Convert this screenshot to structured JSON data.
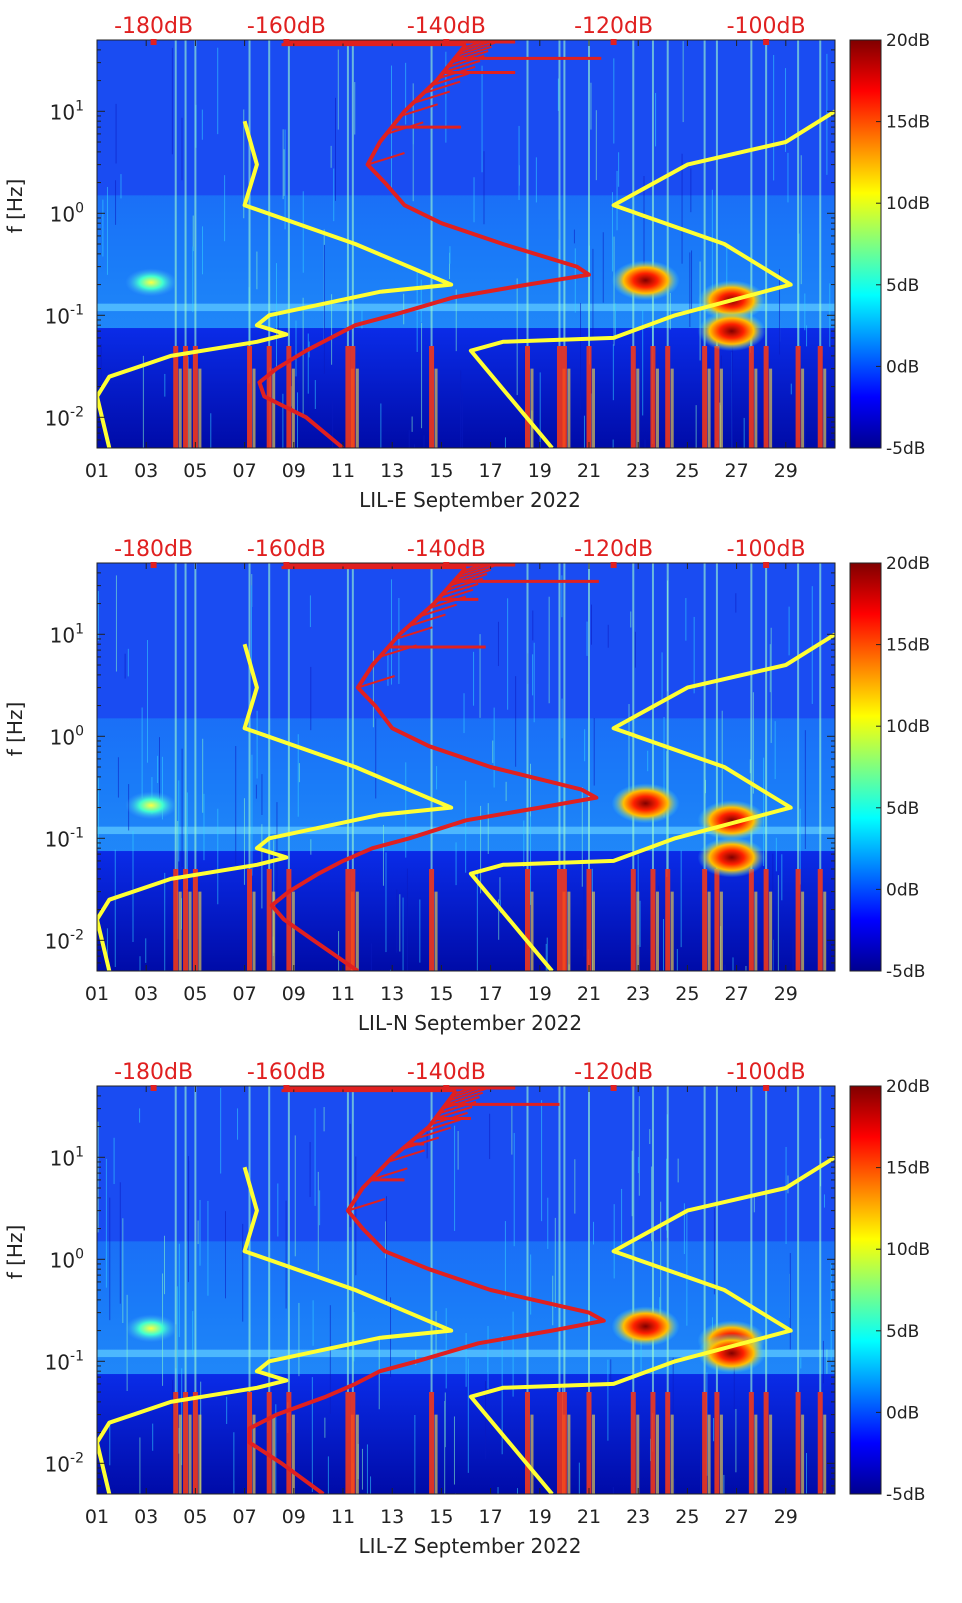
{
  "chart_data": [
    {
      "type": "heatmap",
      "station": "LIL-E",
      "xlabel": "LIL-E September 2022",
      "ylabel": "f [Hz]",
      "x_ticks": [
        "01",
        "03",
        "05",
        "07",
        "09",
        "11",
        "13",
        "15",
        "17",
        "19",
        "21",
        "23",
        "25",
        "27",
        "29"
      ],
      "x_tick_days": [
        1,
        3,
        5,
        7,
        9,
        11,
        13,
        15,
        17,
        19,
        21,
        23,
        25,
        27,
        29
      ],
      "xlim": [
        1,
        31
      ],
      "ylim": [
        0.005,
        50
      ],
      "y_scale": "log",
      "y_ticks": [
        0.01,
        0.1,
        1,
        10
      ],
      "y_tick_labels": [
        {
          "base": "10",
          "exp": "-2"
        },
        {
          "base": "10",
          "exp": "-1"
        },
        {
          "base": "10",
          "exp": "0"
        },
        {
          "base": "10",
          "exp": "1"
        }
      ],
      "top_axis_labels": [
        "-180dB",
        "-160dB",
        "-140dB",
        "-120dB",
        "-100dB"
      ],
      "top_axis_db": [
        -180,
        -160,
        -140,
        -120,
        -100
      ],
      "top_axis_day": [
        3.3,
        8.7,
        15.2,
        22.0,
        28.2
      ],
      "colorbar": {
        "labels": [
          "20dB",
          "15dB",
          "10dB",
          "5dB",
          "0dB",
          "-5dB"
        ],
        "values": [
          20,
          15,
          10,
          5,
          0,
          -5
        ],
        "range": [
          -5,
          20
        ]
      },
      "noise_models": {
        "low": {
          "color": "#ffff33",
          "points": [
            [
              0.005,
              1.5
            ],
            [
              0.016,
              1.0
            ],
            [
              0.025,
              1.5
            ],
            [
              0.04,
              4.0
            ],
            [
              0.055,
              7.5
            ],
            [
              0.065,
              8.7
            ],
            [
              0.08,
              7.5
            ],
            [
              0.1,
              8.0
            ],
            [
              0.17,
              12.5
            ],
            [
              0.2,
              15.4
            ],
            [
              0.5,
              11.5
            ],
            [
              1.2,
              7.0
            ],
            [
              3.0,
              7.5
            ],
            [
              8.0,
              7.0
            ]
          ]
        },
        "high": {
          "color": "#ffff33",
          "points": [
            [
              0.005,
              19.5
            ],
            [
              0.045,
              16.2
            ],
            [
              0.055,
              17.5
            ],
            [
              0.06,
              22.0
            ],
            [
              0.1,
              24.5
            ],
            [
              0.2,
              29.2
            ],
            [
              0.5,
              26.5
            ],
            [
              1.2,
              22.0
            ],
            [
              3.0,
              25.0
            ],
            [
              5.0,
              29.0
            ],
            [
              10.0,
              31.0
            ]
          ]
        }
      },
      "psd_curve": {
        "color": "#e02020",
        "points": [
          [
            0.005,
            11.0
          ],
          [
            0.01,
            9.5
          ],
          [
            0.016,
            7.8
          ],
          [
            0.022,
            7.6
          ],
          [
            0.03,
            8.3
          ],
          [
            0.045,
            9.5
          ],
          [
            0.06,
            10.5
          ],
          [
            0.08,
            11.5
          ],
          [
            0.1,
            13.0
          ],
          [
            0.15,
            15.5
          ],
          [
            0.2,
            18.5
          ],
          [
            0.25,
            21.0
          ],
          [
            0.3,
            20.5
          ],
          [
            0.5,
            17.5
          ],
          [
            0.8,
            15.0
          ],
          [
            1.2,
            13.5
          ],
          [
            2.0,
            12.7
          ],
          [
            3.0,
            12.0
          ],
          [
            5.0,
            12.5
          ],
          [
            10.0,
            13.5
          ],
          [
            20.0,
            14.8
          ],
          [
            45.0,
            16.0
          ]
        ]
      },
      "psd_spikes": [
        {
          "f": 7.0,
          "to_day": 15.8
        },
        {
          "f": 24.0,
          "to_day": 18.0
        },
        {
          "f": 33.0,
          "to_day": 21.5
        },
        {
          "f": 45.0,
          "to_day": 8.5
        }
      ],
      "hotspots": [
        {
          "day": 3.2,
          "f": 0.21,
          "level": "high"
        },
        {
          "day": 23.3,
          "f": 0.22,
          "level": "very-high"
        },
        {
          "day": 26.8,
          "f": 0.14,
          "level": "very-high"
        },
        {
          "day": 26.8,
          "f": 0.07,
          "level": "very-high"
        }
      ],
      "transients_days": [
        4.2,
        4.6,
        5.0,
        7.2,
        8.0,
        8.8,
        11.2,
        11.4,
        14.6,
        18.5,
        19.8,
        20.0,
        21.0,
        22.8,
        23.6,
        24.2,
        25.7,
        26.2,
        27.6,
        28.2,
        29.5,
        30.4
      ]
    },
    {
      "type": "heatmap",
      "station": "LIL-N",
      "xlabel": "LIL-N September 2022",
      "ylabel": "f [Hz]",
      "x_ticks": [
        "01",
        "03",
        "05",
        "07",
        "09",
        "11",
        "13",
        "15",
        "17",
        "19",
        "21",
        "23",
        "25",
        "27",
        "29"
      ],
      "x_tick_days": [
        1,
        3,
        5,
        7,
        9,
        11,
        13,
        15,
        17,
        19,
        21,
        23,
        25,
        27,
        29
      ],
      "xlim": [
        1,
        31
      ],
      "ylim": [
        0.005,
        50
      ],
      "y_scale": "log",
      "y_ticks": [
        0.01,
        0.1,
        1,
        10
      ],
      "y_tick_labels": [
        {
          "base": "10",
          "exp": "-2"
        },
        {
          "base": "10",
          "exp": "-1"
        },
        {
          "base": "10",
          "exp": "0"
        },
        {
          "base": "10",
          "exp": "1"
        }
      ],
      "top_axis_labels": [
        "-180dB",
        "-160dB",
        "-140dB",
        "-120dB",
        "-100dB"
      ],
      "top_axis_db": [
        -180,
        -160,
        -140,
        -120,
        -100
      ],
      "top_axis_day": [
        3.3,
        8.7,
        15.2,
        22.0,
        28.2
      ],
      "colorbar": {
        "labels": [
          "20dB",
          "15dB",
          "10dB",
          "5dB",
          "0dB",
          "-5dB"
        ],
        "values": [
          20,
          15,
          10,
          5,
          0,
          -5
        ],
        "range": [
          -5,
          20
        ]
      },
      "noise_models": {
        "low": {
          "color": "#ffff33",
          "points": [
            [
              0.005,
              1.5
            ],
            [
              0.016,
              1.0
            ],
            [
              0.025,
              1.5
            ],
            [
              0.04,
              4.0
            ],
            [
              0.055,
              7.5
            ],
            [
              0.065,
              8.7
            ],
            [
              0.08,
              7.5
            ],
            [
              0.1,
              8.0
            ],
            [
              0.17,
              12.5
            ],
            [
              0.2,
              15.4
            ],
            [
              0.5,
              11.5
            ],
            [
              1.2,
              7.0
            ],
            [
              3.0,
              7.5
            ],
            [
              8.0,
              7.0
            ]
          ]
        },
        "high": {
          "color": "#ffff33",
          "points": [
            [
              0.005,
              19.5
            ],
            [
              0.045,
              16.2
            ],
            [
              0.055,
              17.5
            ],
            [
              0.06,
              22.0
            ],
            [
              0.1,
              24.5
            ],
            [
              0.2,
              29.2
            ],
            [
              0.5,
              26.5
            ],
            [
              1.2,
              22.0
            ],
            [
              3.0,
              25.0
            ],
            [
              5.0,
              29.0
            ],
            [
              10.0,
              31.0
            ]
          ]
        }
      },
      "psd_curve": {
        "color": "#e02020",
        "points": [
          [
            0.005,
            11.6
          ],
          [
            0.01,
            9.8
          ],
          [
            0.016,
            8.6
          ],
          [
            0.022,
            8.1
          ],
          [
            0.03,
            8.8
          ],
          [
            0.045,
            10.0
          ],
          [
            0.06,
            11.0
          ],
          [
            0.08,
            12.2
          ],
          [
            0.1,
            13.7
          ],
          [
            0.15,
            16.0
          ],
          [
            0.2,
            19.0
          ],
          [
            0.25,
            21.3
          ],
          [
            0.3,
            20.7
          ],
          [
            0.5,
            17.0
          ],
          [
            0.8,
            14.5
          ],
          [
            1.2,
            13.0
          ],
          [
            2.0,
            12.3
          ],
          [
            3.0,
            11.6
          ],
          [
            5.0,
            12.2
          ],
          [
            10.0,
            13.3
          ],
          [
            20.0,
            14.7
          ],
          [
            45.0,
            16.0
          ]
        ]
      },
      "psd_spikes": [
        {
          "f": 7.5,
          "to_day": 16.8
        },
        {
          "f": 22.0,
          "to_day": 16.5
        },
        {
          "f": 33.0,
          "to_day": 21.4
        },
        {
          "f": 45.0,
          "to_day": 8.5
        }
      ],
      "hotspots": [
        {
          "day": 3.2,
          "f": 0.21,
          "level": "high"
        },
        {
          "day": 23.3,
          "f": 0.22,
          "level": "very-high"
        },
        {
          "day": 26.8,
          "f": 0.15,
          "level": "very-high"
        },
        {
          "day": 26.8,
          "f": 0.065,
          "level": "very-high"
        }
      ],
      "transients_days": [
        4.2,
        4.6,
        5.0,
        7.2,
        8.0,
        8.8,
        11.2,
        11.4,
        14.6,
        18.5,
        19.8,
        20.0,
        21.0,
        22.8,
        23.6,
        24.2,
        25.7,
        26.2,
        27.6,
        28.2,
        29.5,
        30.4
      ]
    },
    {
      "type": "heatmap",
      "station": "LIL-Z",
      "xlabel": "LIL-Z September 2022",
      "ylabel": "f [Hz]",
      "x_ticks": [
        "01",
        "03",
        "05",
        "07",
        "09",
        "11",
        "13",
        "15",
        "17",
        "19",
        "21",
        "23",
        "25",
        "27",
        "29"
      ],
      "x_tick_days": [
        1,
        3,
        5,
        7,
        9,
        11,
        13,
        15,
        17,
        19,
        21,
        23,
        25,
        27,
        29
      ],
      "xlim": [
        1,
        31
      ],
      "ylim": [
        0.005,
        50
      ],
      "y_scale": "log",
      "y_ticks": [
        0.01,
        0.1,
        1,
        10
      ],
      "y_tick_labels": [
        {
          "base": "10",
          "exp": "-2"
        },
        {
          "base": "10",
          "exp": "-1"
        },
        {
          "base": "10",
          "exp": "0"
        },
        {
          "base": "10",
          "exp": "1"
        }
      ],
      "top_axis_labels": [
        "-180dB",
        "-160dB",
        "-140dB",
        "-120dB",
        "-100dB"
      ],
      "top_axis_db": [
        -180,
        -160,
        -140,
        -120,
        -100
      ],
      "top_axis_day": [
        3.3,
        8.7,
        15.2,
        22.0,
        28.2
      ],
      "colorbar": {
        "labels": [
          "20dB",
          "15dB",
          "10dB",
          "5dB",
          "0dB",
          "-5dB"
        ],
        "values": [
          20,
          15,
          10,
          5,
          0,
          -5
        ],
        "range": [
          -5,
          20
        ]
      },
      "noise_models": {
        "low": {
          "color": "#ffff33",
          "points": [
            [
              0.005,
              1.5
            ],
            [
              0.016,
              1.0
            ],
            [
              0.025,
              1.5
            ],
            [
              0.04,
              4.0
            ],
            [
              0.055,
              7.5
            ],
            [
              0.065,
              8.7
            ],
            [
              0.08,
              7.5
            ],
            [
              0.1,
              8.0
            ],
            [
              0.17,
              12.5
            ],
            [
              0.2,
              15.4
            ],
            [
              0.5,
              11.5
            ],
            [
              1.2,
              7.0
            ],
            [
              3.0,
              7.5
            ],
            [
              8.0,
              7.0
            ]
          ]
        },
        "high": {
          "color": "#ffff33",
          "points": [
            [
              0.005,
              19.5
            ],
            [
              0.045,
              16.2
            ],
            [
              0.055,
              17.5
            ],
            [
              0.06,
              22.0
            ],
            [
              0.1,
              24.5
            ],
            [
              0.2,
              29.2
            ],
            [
              0.5,
              26.5
            ],
            [
              1.2,
              22.0
            ],
            [
              3.0,
              25.0
            ],
            [
              5.0,
              29.0
            ],
            [
              10.0,
              31.0
            ]
          ]
        }
      },
      "psd_curve": {
        "color": "#e02020",
        "points": [
          [
            0.005,
            10.2
          ],
          [
            0.01,
            8.5
          ],
          [
            0.016,
            7.2
          ],
          [
            0.022,
            7.2
          ],
          [
            0.03,
            8.3
          ],
          [
            0.045,
            10.3
          ],
          [
            0.06,
            11.5
          ],
          [
            0.08,
            12.5
          ],
          [
            0.1,
            14.0
          ],
          [
            0.15,
            16.5
          ],
          [
            0.2,
            19.5
          ],
          [
            0.25,
            21.6
          ],
          [
            0.3,
            21.0
          ],
          [
            0.5,
            17.0
          ],
          [
            0.8,
            14.5
          ],
          [
            1.2,
            12.7
          ],
          [
            2.0,
            11.8
          ],
          [
            3.0,
            11.2
          ],
          [
            5.0,
            11.8
          ],
          [
            10.0,
            13.0
          ],
          [
            20.0,
            14.5
          ],
          [
            45.0,
            15.6
          ]
        ]
      },
      "psd_spikes": [
        {
          "f": 6.0,
          "to_day": 13.5
        },
        {
          "f": 13.5,
          "to_day": 14.3
        },
        {
          "f": 24.0,
          "to_day": 16.2
        },
        {
          "f": 33.0,
          "to_day": 19.8
        },
        {
          "f": 45.0,
          "to_day": 8.5
        }
      ],
      "hotspots": [
        {
          "day": 3.2,
          "f": 0.21,
          "level": "high"
        },
        {
          "day": 23.3,
          "f": 0.22,
          "level": "very-high"
        },
        {
          "day": 26.8,
          "f": 0.16,
          "level": "very-high"
        },
        {
          "day": 26.8,
          "f": 0.12,
          "level": "very-high"
        }
      ],
      "transients_days": [
        4.2,
        4.6,
        5.0,
        7.2,
        8.0,
        8.8,
        11.2,
        11.4,
        14.6,
        18.5,
        19.8,
        20.0,
        21.0,
        22.8,
        23.6,
        24.2,
        25.7,
        26.2,
        27.6,
        28.2,
        29.5,
        30.4
      ]
    }
  ]
}
